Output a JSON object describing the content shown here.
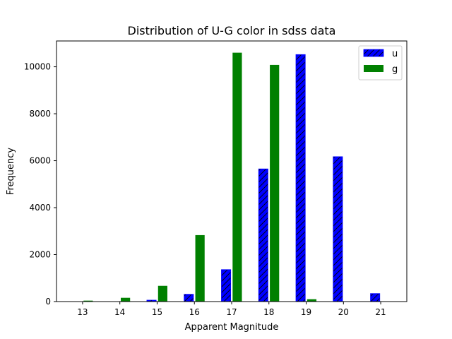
{
  "chart_data": {
    "type": "bar",
    "title": "Distribution of U-G color in sdss data",
    "xlabel": "Apparent Magnitude",
    "ylabel": "Frequency",
    "categories": [
      "13",
      "14",
      "15",
      "16",
      "17",
      "18",
      "19",
      "20",
      "21"
    ],
    "x_values": [
      13,
      14,
      15,
      16,
      17,
      18,
      19,
      20,
      21
    ],
    "xlim": [
      12.3,
      21.7
    ],
    "ylim": [
      0,
      11100
    ],
    "yticks": [
      0,
      2000,
      4000,
      6000,
      8000,
      10000
    ],
    "grid": false,
    "legend_position": "top-right",
    "series": [
      {
        "name": "u",
        "color": "#0000ff",
        "hatch": "diagonal",
        "values": [
          0,
          0,
          60,
          310,
          1360,
          5650,
          10520,
          6170,
          340
        ]
      },
      {
        "name": "g",
        "color": "#008000",
        "hatch": "none",
        "values": [
          40,
          160,
          670,
          2830,
          10600,
          10080,
          100,
          0,
          0
        ]
      }
    ]
  }
}
